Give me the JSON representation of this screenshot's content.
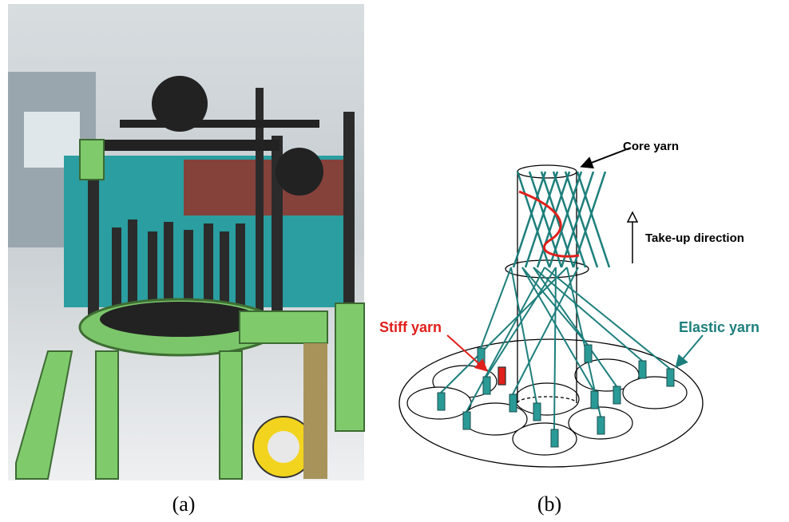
{
  "panels": [
    {
      "caption": "(a)"
    },
    {
      "caption": "(b)",
      "labels": {
        "core": "Core yarn",
        "takeup": "Take-up direction",
        "stiff": "Stiff yarn",
        "elastic": "Elastic yarn"
      }
    }
  ]
}
